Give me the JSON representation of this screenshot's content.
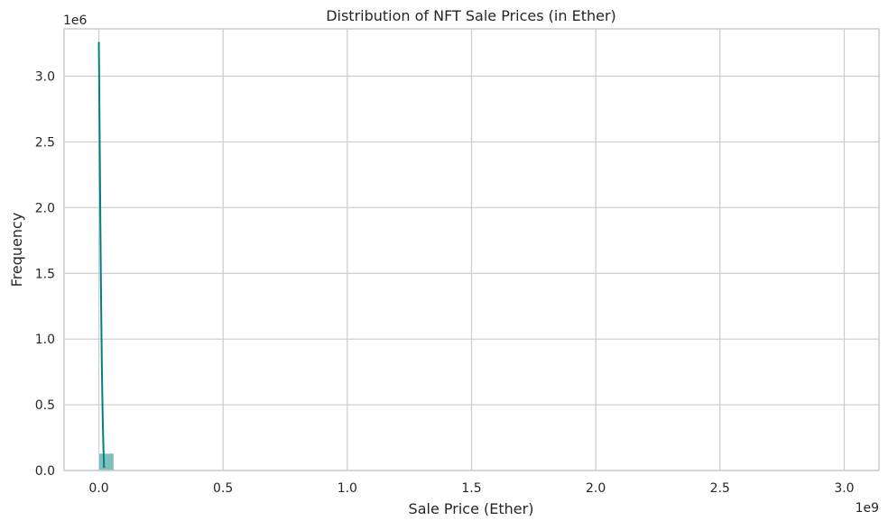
{
  "chart_data": {
    "type": "bar",
    "title": "Distribution of NFT Sale Prices (in Ether)",
    "xlabel": "Sale Price (Ether)",
    "ylabel": "Frequency",
    "x_offset_label": "1e9",
    "y_offset_label": "1e6",
    "xlim": [
      -0.14,
      3.14
    ],
    "ylim": [
      0,
      3.36
    ],
    "x_ticks": [
      {
        "value": 0.0,
        "label": "0.0"
      },
      {
        "value": 0.5,
        "label": "0.5"
      },
      {
        "value": 1.0,
        "label": "1.0"
      },
      {
        "value": 1.5,
        "label": "1.5"
      },
      {
        "value": 2.0,
        "label": "2.0"
      },
      {
        "value": 2.5,
        "label": "2.5"
      },
      {
        "value": 3.0,
        "label": "3.0"
      }
    ],
    "y_ticks": [
      {
        "value": 0.0,
        "label": "0.0"
      },
      {
        "value": 0.5,
        "label": "0.5"
      },
      {
        "value": 1.0,
        "label": "1.0"
      },
      {
        "value": 1.5,
        "label": "1.5"
      },
      {
        "value": 2.0,
        "label": "2.0"
      },
      {
        "value": 2.5,
        "label": "2.5"
      },
      {
        "value": 3.0,
        "label": "3.0"
      }
    ],
    "histogram_bins": [
      {
        "x0": 0.0,
        "x1": 0.06,
        "count": 0.13
      }
    ],
    "kde_line": {
      "x": [
        0.0,
        0.003,
        0.006,
        0.009,
        0.012,
        0.015,
        0.018,
        0.021
      ],
      "y": [
        3.26,
        2.6,
        1.9,
        1.3,
        0.8,
        0.45,
        0.2,
        0.02
      ]
    },
    "grid": true,
    "colors": {
      "bar": "#008080",
      "line": "#008080",
      "grid": "#cccccc",
      "axis": "#cccccc",
      "text": "#262626"
    }
  }
}
